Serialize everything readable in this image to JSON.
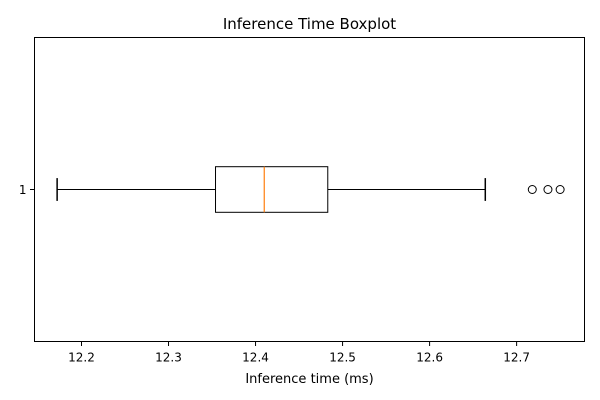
{
  "chart_data": {
    "type": "boxplot",
    "orientation": "horizontal",
    "title": "Inference Time Boxplot",
    "xlabel": "Inference time (ms)",
    "ylabel": "",
    "xlim": [
      12.146,
      12.778
    ],
    "x_ticks": [
      "12.2",
      "12.3",
      "12.4",
      "12.5",
      "12.6",
      "12.7"
    ],
    "y_ticks": [
      "1"
    ],
    "grid": false,
    "series": [
      {
        "category": "1",
        "whisker_low": 12.172,
        "q1": 12.354,
        "median": 12.41,
        "q3": 12.483,
        "whisker_high": 12.664,
        "outliers": [
          12.718,
          12.736,
          12.75
        ]
      }
    ],
    "colors": {
      "box": "#000000",
      "median": "#ff7f0e",
      "outlier": "#000000"
    }
  }
}
